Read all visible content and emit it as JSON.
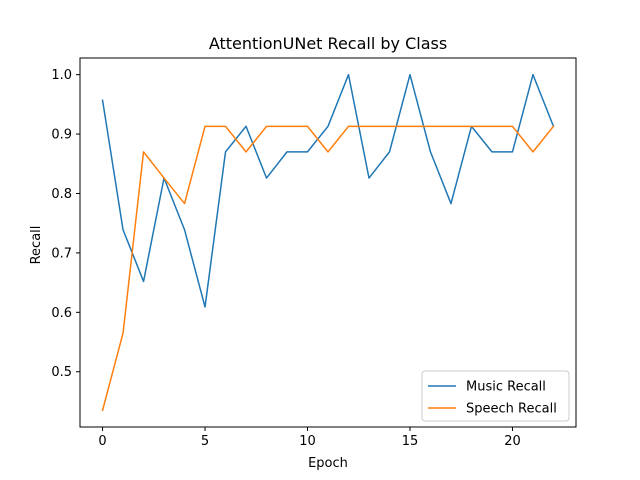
{
  "chart_data": {
    "type": "line",
    "title": "AttentionUNet Recall by Class",
    "xlabel": "Epoch",
    "ylabel": "Recall",
    "x": [
      0,
      1,
      2,
      3,
      4,
      5,
      6,
      7,
      8,
      9,
      10,
      11,
      12,
      13,
      14,
      15,
      16,
      17,
      18,
      19,
      20,
      21,
      22
    ],
    "xlim": [
      -1.1,
      23.1
    ],
    "ylim": [
      0.407,
      1.028
    ],
    "xticks": [
      0,
      5,
      10,
      15,
      20
    ],
    "yticks": [
      0.5,
      0.6,
      0.7,
      0.8,
      0.9,
      1.0
    ],
    "xtick_labels": [
      "0",
      "5",
      "10",
      "15",
      "20"
    ],
    "ytick_labels": [
      "0.5",
      "0.6",
      "0.7",
      "0.8",
      "0.9",
      "1.0"
    ],
    "grid": false,
    "legend_position": "lower-right",
    "series": [
      {
        "name": "Music Recall",
        "color": "#1f77b4",
        "values": [
          0.957,
          0.739,
          0.652,
          0.826,
          0.739,
          0.609,
          0.87,
          0.913,
          0.826,
          0.87,
          0.87,
          0.913,
          1.0,
          0.826,
          0.87,
          1.0,
          0.87,
          0.783,
          0.913,
          0.87,
          0.87,
          1.0,
          0.913
        ]
      },
      {
        "name": "Speech Recall",
        "color": "#ff7f0e",
        "values": [
          0.435,
          0.565,
          0.87,
          0.826,
          0.783,
          0.913,
          0.913,
          0.87,
          0.913,
          0.913,
          0.913,
          0.87,
          0.913,
          0.913,
          0.913,
          0.913,
          0.913,
          0.913,
          0.913,
          0.913,
          0.913,
          0.87,
          0.913
        ]
      }
    ]
  }
}
